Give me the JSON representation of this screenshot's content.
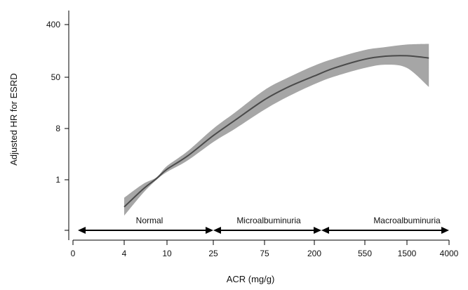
{
  "chart_data": {
    "type": "line",
    "xlabel": "ACR (mg/g)",
    "ylabel": "Adjusted HR for ESRD",
    "x_ticks": [
      "0",
      "4",
      "10",
      "25",
      "75",
      "200",
      "550",
      "1500",
      "4000"
    ],
    "y_ticks": [
      "1",
      "8",
      "50",
      "400"
    ],
    "y_scale": "log",
    "series": [
      {
        "type": "line-with-confidence-band",
        "x": [
          4,
          6,
          8,
          10,
          15,
          25,
          40,
          75,
          120,
          200,
          300,
          550,
          900,
          1500,
          2500
        ],
        "y": [
          0.35,
          0.7,
          1.05,
          1.5,
          2.5,
          5.5,
          10,
          22,
          36,
          55,
          75,
          105,
          118,
          120,
          110
        ],
        "y_lower": [
          0.25,
          0.6,
          1.0,
          1.35,
          2.1,
          4.3,
          7.2,
          15,
          25,
          40,
          54,
          75,
          85,
          75,
          36
        ],
        "y_upper": [
          0.5,
          0.85,
          1.1,
          1.7,
          3.0,
          7.2,
          13.5,
          32,
          52,
          82,
          108,
          150,
          168,
          185,
          190
        ]
      }
    ],
    "regions": [
      {
        "label": "Normal",
        "from": "0",
        "to": "25"
      },
      {
        "label": "Microalbuminuria",
        "from": "25",
        "to": "200"
      },
      {
        "label": "Macroalbuminuria",
        "from": "200",
        "to": "4000"
      }
    ]
  }
}
